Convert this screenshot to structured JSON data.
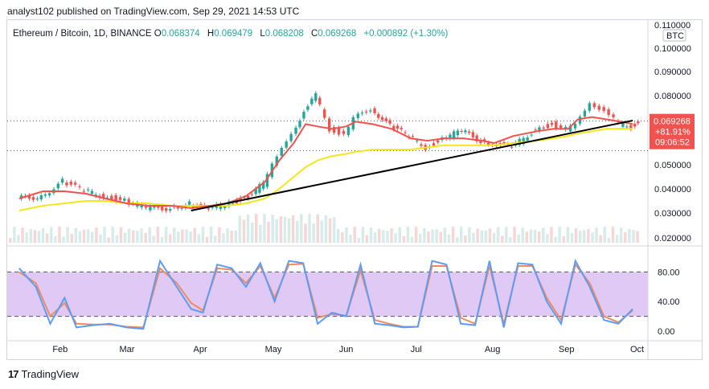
{
  "header": {
    "published": "analyst102 published on TradingView.com, Sep 29, 2021 14:53 UTC"
  },
  "legend": {
    "symbol": "Ethereum / Bitcoin, 1D, BINANCE",
    "o_label": "O",
    "o": "0.068374",
    "h_label": "H",
    "h": "0.069479",
    "l_label": "L",
    "l": "0.068208",
    "c_label": "C",
    "c": "0.069268",
    "change": "+0.000892 (+1.30%)"
  },
  "price_axis": {
    "currency": "BTC",
    "ticks": [
      "0.110000",
      "0.100000",
      "0.090000",
      "0.080000",
      "0.060000",
      "0.050000",
      "0.040000",
      "0.030000",
      "0.020000"
    ],
    "last_price": "0.069268",
    "last_change": "+81.91%",
    "countdown": "09:06:52"
  },
  "osc_axis": {
    "ticks": [
      "80.00",
      "40.00",
      "0.00"
    ]
  },
  "time_axis": {
    "ticks": [
      "Feb",
      "Mar",
      "Apr",
      "May",
      "Jun",
      "Jul",
      "Aug",
      "Sep",
      "Oct"
    ]
  },
  "footer": {
    "brand": "TradingView"
  },
  "colors": {
    "up": "#26a69a",
    "down": "#ef5350",
    "ma_fast": "#ef5350",
    "ma_slow": "#f5e61b",
    "trend": "#000000",
    "k_line": "#5b9cf6",
    "d_line": "#f08a5d",
    "band": "#e1c9f5"
  },
  "chart_data": [
    {
      "type": "candlestick",
      "title": "Ethereum / Bitcoin, 1D, BINANCE",
      "ylim": [
        0.018,
        0.112
      ],
      "x": [
        "2021-01-15",
        "2021-01-25",
        "2021-02-03",
        "2021-02-12",
        "2021-02-20",
        "2021-03-01",
        "2021-03-10",
        "2021-03-20",
        "2021-03-28",
        "2021-04-05",
        "2021-04-12",
        "2021-04-20",
        "2021-04-28",
        "2021-05-04",
        "2021-05-10",
        "2021-05-15",
        "2021-05-20",
        "2021-05-26",
        "2021-06-01",
        "2021-06-05",
        "2021-06-12",
        "2021-06-20",
        "2021-06-28",
        "2021-07-05",
        "2021-07-12",
        "2021-07-20",
        "2021-07-28",
        "2021-08-02",
        "2021-08-10",
        "2021-08-20",
        "2021-08-27",
        "2021-09-02",
        "2021-09-06",
        "2021-09-12",
        "2021-09-18",
        "2021-09-24",
        "2021-09-29"
      ],
      "close": [
        0.037,
        0.043,
        0.039,
        0.037,
        0.035,
        0.032,
        0.032,
        0.034,
        0.031,
        0.034,
        0.036,
        0.042,
        0.053,
        0.065,
        0.073,
        0.08,
        0.066,
        0.064,
        0.07,
        0.075,
        0.067,
        0.063,
        0.058,
        0.062,
        0.065,
        0.061,
        0.06,
        0.058,
        0.066,
        0.068,
        0.066,
        0.067,
        0.078,
        0.073,
        0.068,
        0.067,
        0.069268
      ],
      "ma_fast": [
        0.036,
        0.039,
        0.039,
        0.038,
        0.036,
        0.034,
        0.033,
        0.033,
        0.032,
        0.033,
        0.034,
        0.037,
        0.043,
        0.052,
        0.06,
        0.068,
        0.067,
        0.066,
        0.067,
        0.069,
        0.068,
        0.066,
        0.062,
        0.061,
        0.062,
        0.062,
        0.061,
        0.06,
        0.063,
        0.065,
        0.066,
        0.066,
        0.07,
        0.071,
        0.07,
        0.069,
        0.068
      ],
      "ma_slow": [
        0.031,
        0.033,
        0.034,
        0.035,
        0.035,
        0.034,
        0.034,
        0.033,
        0.033,
        0.033,
        0.033,
        0.034,
        0.036,
        0.04,
        0.045,
        0.049,
        0.052,
        0.054,
        0.055,
        0.056,
        0.057,
        0.057,
        0.057,
        0.058,
        0.059,
        0.059,
        0.059,
        0.059,
        0.06,
        0.061,
        0.062,
        0.063,
        0.064,
        0.065,
        0.066,
        0.066,
        0.066
      ],
      "trendline": [
        [
          "2021-03-28",
          0.031
        ],
        [
          "2021-09-29",
          0.0695
        ]
      ]
    },
    {
      "type": "line",
      "title": "Stochastic",
      "ylim": [
        0,
        100
      ],
      "bands": [
        20,
        80
      ],
      "x": [
        "2021-01-15",
        "2021-01-22",
        "2021-01-28",
        "2021-02-03",
        "2021-02-08",
        "2021-02-15",
        "2021-02-22",
        "2021-03-01",
        "2021-03-08",
        "2021-03-15",
        "2021-03-22",
        "2021-03-28",
        "2021-04-02",
        "2021-04-08",
        "2021-04-14",
        "2021-04-20",
        "2021-04-26",
        "2021-05-02",
        "2021-05-08",
        "2021-05-14",
        "2021-05-20",
        "2021-05-26",
        "2021-06-01",
        "2021-06-07",
        "2021-06-13",
        "2021-06-19",
        "2021-06-25",
        "2021-07-01",
        "2021-07-07",
        "2021-07-13",
        "2021-07-19",
        "2021-07-25",
        "2021-07-31",
        "2021-08-06",
        "2021-08-12",
        "2021-08-18",
        "2021-08-24",
        "2021-08-30",
        "2021-09-05",
        "2021-09-11",
        "2021-09-17",
        "2021-09-23",
        "2021-09-29"
      ],
      "series": [
        {
          "key": "k",
          "values": [
            85,
            60,
            10,
            45,
            5,
            8,
            10,
            5,
            3,
            95,
            60,
            30,
            25,
            90,
            85,
            60,
            92,
            40,
            95,
            92,
            10,
            25,
            20,
            90,
            10,
            8,
            5,
            6,
            95,
            90,
            10,
            8,
            95,
            5,
            92,
            90,
            40,
            10,
            95,
            60,
            15,
            10,
            30
          ]
        },
        {
          "key": "d",
          "values": [
            80,
            65,
            20,
            38,
            10,
            9,
            9,
            6,
            5,
            85,
            65,
            38,
            28,
            85,
            83,
            65,
            88,
            45,
            90,
            91,
            18,
            23,
            21,
            82,
            15,
            10,
            6,
            6,
            88,
            88,
            18,
            10,
            88,
            10,
            88,
            88,
            45,
            15,
            90,
            65,
            20,
            12,
            28
          ]
        }
      ]
    }
  ]
}
